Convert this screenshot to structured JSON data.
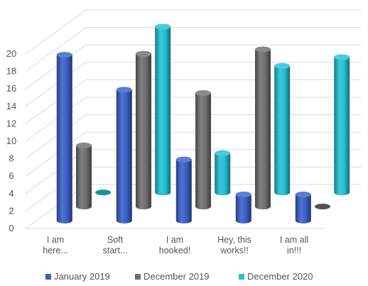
{
  "chart_data": {
    "type": "bar",
    "style": "3d-cylinder",
    "categories": [
      [
        "I am",
        "here..."
      ],
      [
        "Soft",
        "start..."
      ],
      [
        "I am",
        "hooked!"
      ],
      [
        "Hey, this",
        "works!!"
      ],
      [
        "I am all",
        "in!!!"
      ]
    ],
    "series": [
      {
        "name": "January 2019",
        "color": "#3a5fc8",
        "values": [
          19,
          15,
          7,
          3,
          3
        ]
      },
      {
        "name": "December 2019",
        "color": "#6f6f6f",
        "values": [
          7,
          17.5,
          13,
          18,
          0
        ]
      },
      {
        "name": "December 2020",
        "color": "#22c1d3",
        "values": [
          0,
          19,
          4.5,
          14.5,
          15.5
        ]
      }
    ],
    "y_ticks": [
      "0",
      "2",
      "4",
      "6",
      "8",
      "10",
      "12",
      "14",
      "16",
      "18",
      "20"
    ],
    "ylim": [
      0,
      20
    ],
    "grid": true,
    "legend_position": "bottom"
  }
}
